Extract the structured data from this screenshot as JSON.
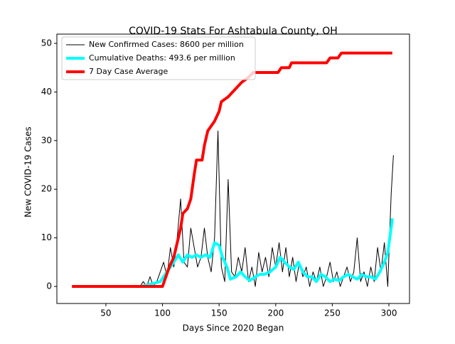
{
  "chart_data": {
    "type": "line",
    "title": "COVID-19 Stats For Ashtabula County, OH",
    "x_label": "Days Since 2020 Began",
    "y_label": "New COVID-19 Cases",
    "xlim": [
      6.7,
      318.2
    ],
    "ylim": [
      -3.5,
      51.9
    ],
    "xticks": [
      50,
      100,
      150,
      200,
      250,
      300
    ],
    "yticks": [
      0,
      10,
      20,
      30,
      40,
      50
    ],
    "grid": false,
    "legend": "upper left",
    "series": [
      {
        "name": "New Confirmed Cases: 8600 per million",
        "color": "#000000",
        "width": 1,
        "x": [
          80,
          83,
          86,
          89,
          92,
          95,
          98,
          101,
          104,
          107,
          110,
          113,
          116,
          119,
          122,
          125,
          128,
          131,
          134,
          137,
          140,
          143,
          146,
          149,
          152,
          155,
          158,
          161,
          164,
          167,
          170,
          173,
          176,
          179,
          182,
          185,
          188,
          191,
          194,
          197,
          200,
          203,
          206,
          209,
          212,
          215,
          218,
          221,
          224,
          227,
          230,
          233,
          236,
          239,
          242,
          245,
          248,
          251,
          254,
          257,
          260,
          263,
          266,
          269,
          272,
          275,
          278,
          281,
          284,
          287,
          290,
          293,
          296,
          299,
          302,
          304
        ],
        "values": [
          0,
          1,
          0,
          2,
          0,
          1,
          3,
          5,
          2,
          8,
          4,
          10,
          18,
          5,
          4,
          12,
          8,
          4,
          6,
          12,
          6,
          3,
          10,
          32,
          4,
          1,
          22,
          3,
          2,
          6,
          3,
          8,
          1,
          4,
          0,
          7,
          3,
          6,
          2,
          8,
          4,
          9,
          3,
          8,
          2,
          6,
          1,
          5,
          2,
          4,
          0,
          3,
          1,
          4,
          0,
          2,
          5,
          1,
          3,
          0,
          2,
          4,
          1,
          3,
          10,
          1,
          3,
          0,
          4,
          1,
          8,
          3,
          9,
          0,
          19,
          27
        ]
      },
      {
        "name": "Cumulative Deaths: 493.6 per million",
        "color": "#00ffff",
        "width": 4,
        "x": [
          80,
          90,
          98,
          104,
          110,
          114,
          118,
          122,
          126,
          130,
          134,
          138,
          142,
          146,
          150,
          153,
          157,
          160,
          165,
          169,
          173,
          177,
          182,
          186,
          190,
          195,
          200,
          204,
          208,
          212,
          216,
          220,
          224,
          228,
          232,
          236,
          240,
          244,
          248,
          252,
          256,
          260,
          264,
          268,
          272,
          276,
          280,
          284,
          288,
          292,
          296,
          299,
          302,
          303
        ],
        "values": [
          0,
          0.5,
          1,
          3,
          5,
          6.5,
          5,
          6.5,
          6,
          6.5,
          6,
          6.5,
          6,
          9,
          8.5,
          6,
          4,
          1.5,
          2,
          3,
          2,
          1.2,
          2,
          2.5,
          2.5,
          3,
          4,
          6,
          5,
          4,
          3.5,
          5,
          3,
          2,
          2,
          1,
          2.5,
          2,
          1,
          1.5,
          1.2,
          2,
          2.5,
          2,
          1.5,
          2.5,
          2,
          2,
          1.5,
          3,
          5,
          7,
          12,
          14
        ]
      },
      {
        "name": "7 Day Case Average",
        "color": "#ff0000",
        "width": 4,
        "x": [
          20,
          100,
          103,
          106,
          110,
          113,
          116,
          118,
          122,
          125,
          128,
          130,
          135,
          137,
          140,
          143,
          146,
          150,
          152,
          158,
          162,
          166,
          170,
          176,
          180,
          202,
          205,
          212,
          214,
          245,
          248,
          255,
          258,
          303
        ],
        "values": [
          0,
          0,
          2,
          4,
          6,
          9,
          12,
          15,
          16,
          18,
          23,
          26,
          26,
          29,
          32,
          33,
          34,
          36,
          38,
          39,
          40,
          41,
          42,
          43,
          44,
          44,
          45,
          45,
          46,
          46,
          47,
          47,
          48,
          48
        ]
      }
    ]
  }
}
